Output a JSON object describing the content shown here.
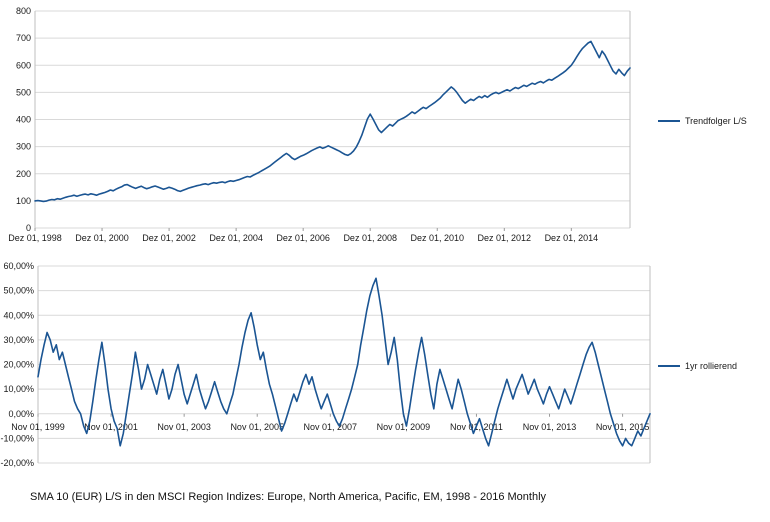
{
  "caption": "SMA 10 (EUR) L/S in den MSCI Region Indizes: Europe, North America, Pacific, EM, 1998 - 2016 Monthly",
  "chart_data": [
    {
      "type": "line",
      "title": "",
      "legend": "Trendfolger L/S",
      "xlabel": "",
      "ylabel": "",
      "ylim": [
        0,
        800
      ],
      "y_step": 100,
      "grid": true,
      "legend_position": "right",
      "line_color": "#1b5593",
      "y_tick_labels": [
        "0",
        "100",
        "200",
        "300",
        "400",
        "500",
        "600",
        "700",
        "800"
      ],
      "x_tick_labels": [
        "Dez 01, 1998",
        "Dez 01, 2000",
        "Dez 01, 2002",
        "Dez 01, 2004",
        "Dez 01, 2006",
        "Dez 01, 2008",
        "Dez 01, 2010",
        "Dez 01, 2012",
        "Dez 01, 2014"
      ],
      "x_tick_indices": [
        0,
        24,
        48,
        72,
        96,
        120,
        144,
        168,
        192
      ],
      "x_start": "Dez 1998",
      "x_frequency": "monthly",
      "values": [
        100,
        101,
        100,
        98,
        99,
        103,
        105,
        104,
        108,
        106,
        110,
        113,
        116,
        118,
        121,
        117,
        120,
        123,
        125,
        122,
        126,
        124,
        121,
        125,
        128,
        131,
        135,
        140,
        137,
        143,
        148,
        152,
        158,
        160,
        155,
        150,
        146,
        150,
        154,
        149,
        145,
        148,
        152,
        155,
        151,
        147,
        143,
        146,
        150,
        147,
        143,
        138,
        135,
        139,
        143,
        147,
        150,
        153,
        156,
        158,
        161,
        163,
        160,
        164,
        167,
        165,
        168,
        170,
        167,
        171,
        174,
        172,
        175,
        178,
        182,
        186,
        190,
        188,
        194,
        199,
        204,
        210,
        216,
        222,
        228,
        236,
        244,
        252,
        260,
        268,
        275,
        268,
        258,
        252,
        258,
        264,
        268,
        273,
        279,
        285,
        290,
        295,
        299,
        294,
        298,
        303,
        298,
        293,
        288,
        283,
        277,
        271,
        268,
        274,
        284,
        298,
        318,
        342,
        372,
        402,
        420,
        402,
        382,
        362,
        352,
        362,
        372,
        382,
        376,
        386,
        396,
        401,
        406,
        412,
        420,
        428,
        422,
        430,
        438,
        445,
        440,
        448,
        455,
        462,
        470,
        478,
        490,
        500,
        510,
        520,
        512,
        500,
        485,
        470,
        460,
        468,
        475,
        470,
        478,
        485,
        480,
        488,
        482,
        490,
        496,
        500,
        495,
        500,
        505,
        510,
        505,
        512,
        518,
        514,
        520,
        526,
        522,
        528,
        534,
        530,
        536,
        540,
        535,
        542,
        548,
        545,
        552,
        558,
        565,
        572,
        580,
        590,
        600,
        615,
        632,
        648,
        662,
        672,
        682,
        688,
        668,
        648,
        628,
        652,
        638,
        618,
        598,
        578,
        568,
        585,
        572,
        562,
        578,
        590
      ]
    },
    {
      "type": "line",
      "title": "",
      "legend": "1yr rollierend",
      "xlabel": "",
      "ylabel": "",
      "ylim": [
        -20,
        60
      ],
      "y_step": 10,
      "unit": "percent",
      "grid": true,
      "legend_position": "right",
      "line_color": "#1b5593",
      "y_tick_labels": [
        "-20,00%",
        "-10,00%",
        "0,00%",
        "10,00%",
        "20,00%",
        "30,00%",
        "40,00%",
        "50,00%",
        "60,00%"
      ],
      "x_tick_labels": [
        "Nov 01, 1999",
        "Nov 01, 2001",
        "Nov 01, 2003",
        "Nov 01, 2005",
        "Nov 01, 2007",
        "Nov 01, 2009",
        "Nov 01, 2011",
        "Nov 01, 2013",
        "Nov 01, 2015"
      ],
      "x_tick_indices": [
        0,
        24,
        48,
        72,
        96,
        120,
        144,
        168,
        192
      ],
      "x_start": "Nov 1999",
      "x_frequency": "monthly",
      "values": [
        15,
        22,
        28,
        33,
        30,
        25,
        28,
        22,
        25,
        20,
        15,
        10,
        5,
        2,
        0,
        -5,
        -8,
        -3,
        5,
        14,
        22,
        29,
        20,
        10,
        2,
        -3,
        -6,
        -13,
        -8,
        0,
        8,
        16,
        25,
        18,
        10,
        14,
        20,
        16,
        12,
        8,
        14,
        18,
        12,
        6,
        10,
        16,
        20,
        14,
        8,
        4,
        8,
        12,
        16,
        10,
        6,
        2,
        5,
        9,
        13,
        9,
        5,
        2,
        0,
        4,
        8,
        14,
        20,
        27,
        33,
        38,
        41,
        35,
        28,
        22,
        25,
        18,
        12,
        8,
        3,
        -2,
        -7,
        -4,
        0,
        4,
        8,
        5,
        9,
        13,
        16,
        12,
        15,
        10,
        6,
        2,
        5,
        8,
        4,
        0,
        -3,
        -5,
        -2,
        2,
        6,
        10,
        15,
        20,
        28,
        35,
        42,
        48,
        52,
        55,
        48,
        40,
        30,
        20,
        25,
        31,
        22,
        10,
        0,
        -5,
        2,
        10,
        18,
        25,
        31,
        24,
        16,
        8,
        2,
        12,
        18,
        14,
        10,
        6,
        2,
        8,
        14,
        10,
        5,
        0,
        -4,
        -8,
        -5,
        -2,
        -6,
        -10,
        -13,
        -8,
        -3,
        2,
        6,
        10,
        14,
        10,
        6,
        10,
        13,
        16,
        12,
        8,
        11,
        14,
        10,
        7,
        4,
        8,
        11,
        8,
        5,
        2,
        6,
        10,
        7,
        4,
        8,
        12,
        16,
        20,
        24,
        27,
        29,
        25,
        20,
        15,
        10,
        5,
        0,
        -4,
        -8,
        -11,
        -13,
        -10,
        -12,
        -13,
        -10,
        -7,
        -9,
        -6,
        -3,
        0
      ]
    }
  ]
}
